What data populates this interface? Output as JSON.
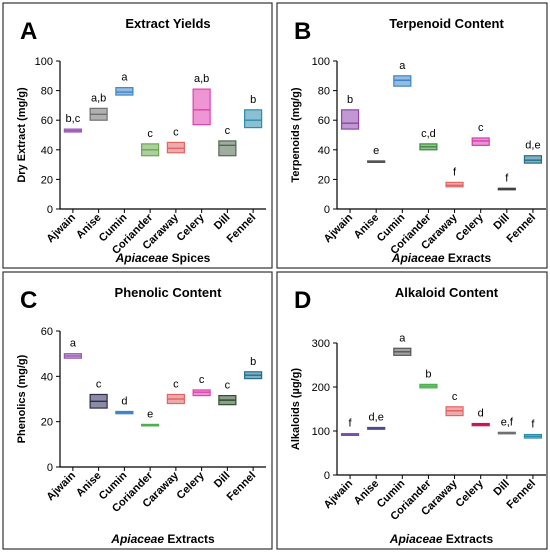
{
  "figure_title": "",
  "chart_data": [
    {
      "id": "A",
      "panel_letter": "A",
      "type": "floating-bar",
      "title": "Extract  Yields",
      "ylabel": "Dry  Extract (mg/g)",
      "xlabel": {
        "italic": "Apiaceae",
        "rest": " Spices"
      },
      "ylim": [
        0,
        100
      ],
      "yticks": [
        0,
        20,
        40,
        60,
        80,
        100
      ],
      "categories": [
        "Ajwain",
        "Anise",
        "Cumin",
        "Coriander",
        "Caraway",
        "Celery",
        "Dill",
        "Fennel"
      ],
      "ranges": [
        [
          52,
          54
        ],
        [
          60,
          68
        ],
        [
          77,
          82
        ],
        [
          36,
          44
        ],
        [
          38,
          45
        ],
        [
          57,
          81
        ],
        [
          36,
          46
        ],
        [
          55,
          67
        ]
      ],
      "means": [
        53,
        64,
        79,
        40,
        41,
        67,
        43,
        60
      ],
      "letters": [
        "b,c",
        "a,b",
        "a",
        "c",
        "c",
        "a,b",
        "c",
        "b"
      ],
      "colors": [
        "#9b59b6",
        "#707070",
        "#3d85c6",
        "#6aa84f",
        "#e06666",
        "#e040b0",
        "#506850",
        "#2b8cae"
      ]
    },
    {
      "id": "B",
      "panel_letter": "B",
      "type": "floating-bar",
      "title": "Terpenoid  Content",
      "ylabel": "Terpenoids (mg/g)",
      "xlabel": {
        "italic": "Apiaceae",
        "rest": " Exracts"
      },
      "ylim": [
        0,
        100
      ],
      "yticks": [
        0,
        20,
        40,
        60,
        80,
        100
      ],
      "categories": [
        "Ajwain",
        "Anise",
        "Cumin",
        "Coriander",
        "Caraway",
        "Celery",
        "Dill",
        "Fennel"
      ],
      "ranges": [
        [
          54,
          67
        ],
        [
          31.5,
          32.5
        ],
        [
          83,
          90
        ],
        [
          40,
          44
        ],
        [
          15,
          18
        ],
        [
          43,
          48
        ],
        [
          13,
          14
        ],
        [
          31,
          36
        ]
      ],
      "means": [
        58,
        32,
        87,
        42,
        16,
        46,
        13.5,
        33
      ],
      "letters": [
        "b",
        "e",
        "a",
        "c,d",
        "f",
        "c",
        "f",
        "d,e"
      ],
      "colors": [
        "#8e44ad",
        "#555555",
        "#3d85c6",
        "#3c8c3c",
        "#e06666",
        "#d63cb0",
        "#404040",
        "#1f6e8c"
      ]
    },
    {
      "id": "C",
      "panel_letter": "C",
      "type": "floating-bar",
      "title": "Phenolic  Content",
      "ylabel": "Phenolics (mg/g)",
      "xlabel": {
        "italic": "Apiaceae",
        "rest": " Extracts"
      },
      "ylim": [
        0,
        60
      ],
      "yticks": [
        0,
        20,
        40,
        60
      ],
      "categories": [
        "Ajwain",
        "Anise",
        "Cumin",
        "Coriander",
        "Caraway",
        "Celery",
        "Dill",
        "Fennel"
      ],
      "ranges": [
        [
          48,
          50
        ],
        [
          26,
          32
        ],
        [
          23.5,
          24.5
        ],
        [
          18.2,
          18.8
        ],
        [
          28,
          32
        ],
        [
          31.5,
          34
        ],
        [
          27.5,
          31.5
        ],
        [
          39,
          42
        ]
      ],
      "means": [
        49,
        29,
        24,
        18.5,
        30,
        33,
        29.5,
        40.5
      ],
      "letters": [
        "a",
        "c",
        "d",
        "e",
        "c",
        "c",
        "c",
        "b"
      ],
      "colors": [
        "#9b59b6",
        "#2c2c54",
        "#3d85c6",
        "#4caf50",
        "#e06666",
        "#e040b0",
        "#2f4f2f",
        "#1f6e8c"
      ]
    },
    {
      "id": "D",
      "panel_letter": "D",
      "type": "floating-bar",
      "title": "Alkaloid Content",
      "ylabel": "Alkaloids  (µg/g)",
      "xlabel": {
        "italic": "Apiaceae",
        "rest": " Extracts"
      },
      "ylim": [
        0,
        300
      ],
      "yticks": [
        0,
        100,
        200,
        300
      ],
      "categories": [
        "Ajwain",
        "Anise",
        "Cumin",
        "Coriander",
        "Caraway",
        "Celery",
        "Dill",
        "Fennel"
      ],
      "ranges": [
        [
          90,
          94
        ],
        [
          104,
          108
        ],
        [
          272,
          288
        ],
        [
          198,
          206
        ],
        [
          135,
          155
        ],
        [
          112,
          117
        ],
        [
          94,
          97
        ],
        [
          84,
          92
        ]
      ],
      "means": [
        92,
        106,
        280,
        202,
        146,
        115,
        95,
        88
      ],
      "letters": [
        "f",
        "d,e",
        "a",
        "b",
        "c",
        "d",
        "e,f",
        "f"
      ],
      "colors": [
        "#7b4fa6",
        "#4a4a8a",
        "#555555",
        "#4caf50",
        "#e06666",
        "#c2185b",
        "#707070",
        "#2b8cae"
      ]
    }
  ]
}
